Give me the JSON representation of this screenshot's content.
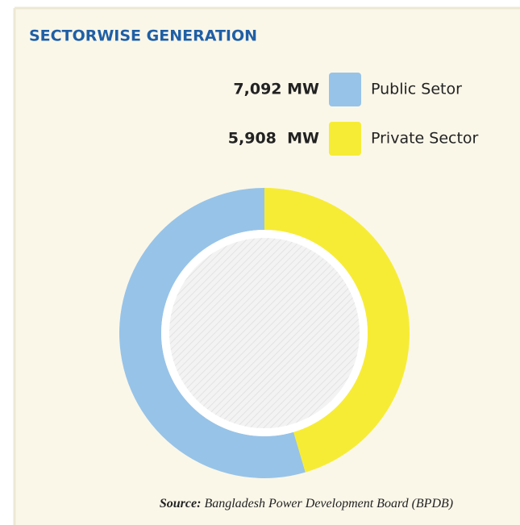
{
  "chart_data": {
    "type": "donut",
    "title": "SECTORWISE GENERATION",
    "categories": [
      "Public Setor",
      "Private Sector"
    ],
    "values": [
      7092,
      5908
    ],
    "value_labels": [
      "7,092 MW",
      "5,908  MW"
    ],
    "colors": [
      "#97c3e8",
      "#f7ec35"
    ],
    "source": {
      "label": "Source:",
      "text": "Bangladesh Power Development Board (BPDB)"
    }
  }
}
